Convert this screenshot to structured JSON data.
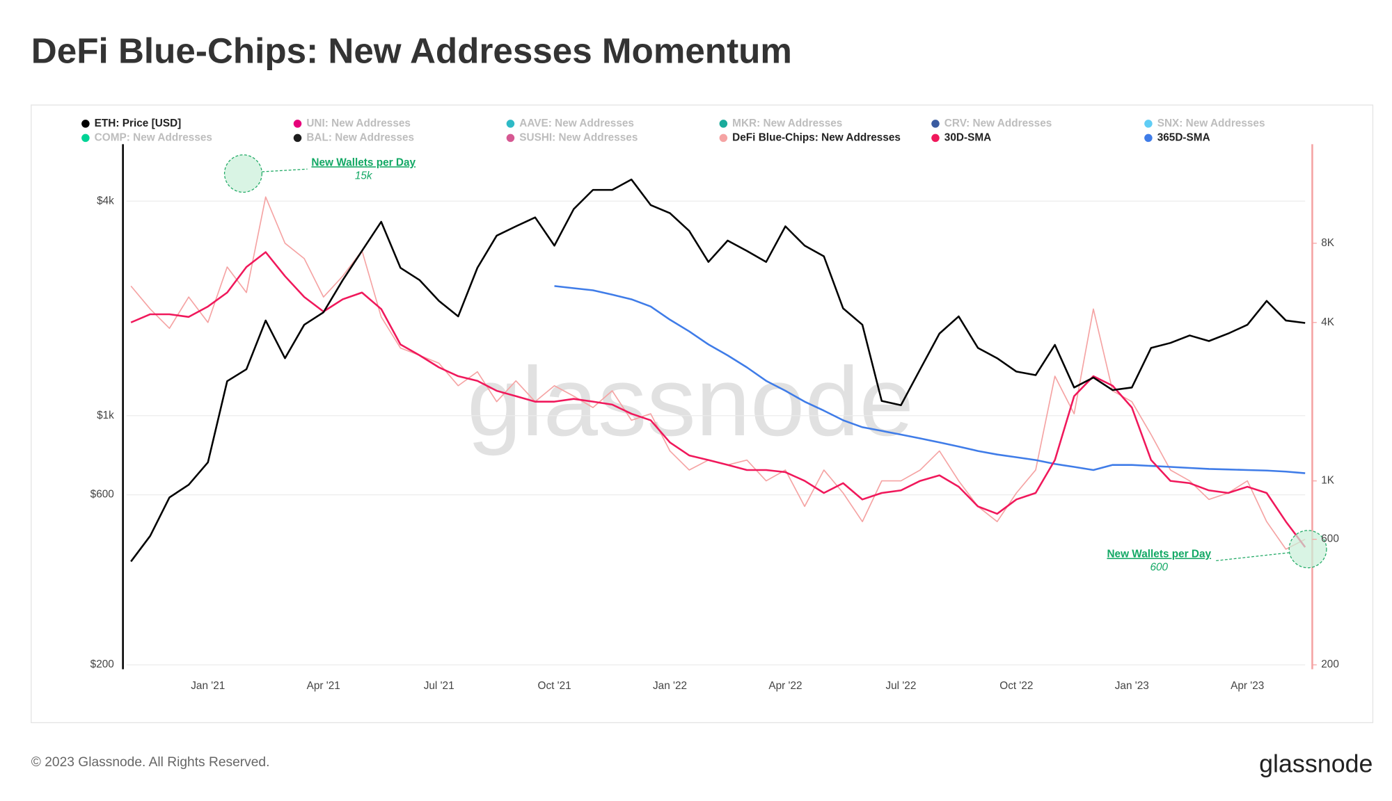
{
  "chart_data": {
    "type": "line",
    "title": "DeFi Blue-Chips: New Addresses Momentum",
    "watermark": "glassnode",
    "footer": "© 2023 Glassnode. All Rights Reserved.",
    "brand": "glassnode",
    "categories": [
      null,
      null,
      null,
      null,
      "Jan '21",
      null,
      null,
      null,
      null,
      null,
      "Apr '21",
      null,
      null,
      null,
      null,
      null,
      "Jul '21",
      null,
      null,
      null,
      null,
      null,
      "Oct '21",
      null,
      null,
      null,
      null,
      null,
      "Jan '22",
      null,
      null,
      null,
      null,
      null,
      "Apr '22",
      null,
      null,
      null,
      null,
      null,
      "Jul '22",
      null,
      null,
      null,
      null,
      null,
      "Oct '22",
      null,
      null,
      null,
      null,
      null,
      "Jan '23",
      null,
      null,
      null,
      null,
      null,
      "Apr '23",
      null,
      null,
      null
    ],
    "ylog": true,
    "ylim": [
      200,
      5680
    ],
    "yticks": [
      {
        "value": 200,
        "label": "$200"
      },
      {
        "value": 600,
        "label": "$600"
      },
      {
        "value": 1000,
        "label": "$1k"
      },
      {
        "value": 4000,
        "label": "$4k"
      }
    ],
    "y2log": true,
    "y2lim": [
      200,
      18600
    ],
    "y2ticks": [
      200,
      600,
      {
        "value": 1000,
        "label": "1K"
      },
      {
        "value": 4000,
        "label": "4K"
      },
      {
        "value": 8000,
        "label": "8K"
      }
    ],
    "grid": true,
    "legend": "top",
    "series": [
      {
        "name": "ETH: Price [USD]",
        "color": "#000000",
        "axis": "y",
        "visible": true,
        "values": [
          390,
          460,
          590,
          640,
          740,
          1250,
          1350,
          1850,
          1450,
          1800,
          1950,
          2400,
          2900,
          3500,
          2600,
          2400,
          2100,
          1900,
          2600,
          3200,
          3400,
          3600,
          3000,
          3800,
          4300,
          4300,
          4600,
          3900,
          3700,
          3300,
          2700,
          3100,
          2900,
          2700,
          3400,
          3000,
          2800,
          2000,
          1800,
          1100,
          1070,
          1350,
          1700,
          1900,
          1550,
          1450,
          1330,
          1300,
          1580,
          1200,
          1280,
          1180,
          1200,
          1550,
          1600,
          1680,
          1620,
          1700,
          1800,
          2100,
          1850,
          1820
        ]
      },
      {
        "name": "UNI: New Addresses",
        "color": "#e6007a",
        "visible": false
      },
      {
        "name": "AAVE: New Addresses",
        "color": "#2ebac6",
        "visible": false
      },
      {
        "name": "MKR: New Addresses",
        "color": "#1aab9b",
        "visible": false
      },
      {
        "name": "CRV: New Addresses",
        "color": "#3a5ba0",
        "visible": false
      },
      {
        "name": "SNX: New Addresses",
        "color": "#5fcdf5",
        "visible": false
      },
      {
        "name": "COMP: New Addresses",
        "color": "#00d395",
        "visible": false
      },
      {
        "name": "BAL: New Addresses",
        "color": "#1e1e1e",
        "visible": false
      },
      {
        "name": "SUSHI: New Addresses",
        "color": "#d65892",
        "visible": false
      },
      {
        "name": "DeFi Blue-Chips: New Addresses",
        "color": "#f5a3a3",
        "axis": "y2",
        "visible": true,
        "values": [
          5500,
          4500,
          3800,
          5000,
          4000,
          6500,
          5200,
          12000,
          8000,
          7000,
          5000,
          6000,
          7500,
          4200,
          3200,
          3000,
          2800,
          2300,
          2600,
          2000,
          2400,
          2000,
          2300,
          2100,
          1900,
          2200,
          1700,
          1800,
          1300,
          1100,
          1200,
          1150,
          1200,
          1000,
          1100,
          800,
          1100,
          900,
          700,
          1000,
          1000,
          1100,
          1300,
          1000,
          800,
          700,
          900,
          1100,
          2500,
          1800,
          4500,
          2200,
          2000,
          1500,
          1100,
          1000,
          850,
          900,
          1000,
          700,
          550,
          600
        ]
      },
      {
        "name": "30D-SMA",
        "color": "#f0185b",
        "axis": "y2",
        "visible": true,
        "values": [
          4000,
          4300,
          4300,
          4200,
          4600,
          5200,
          6500,
          7400,
          6000,
          5000,
          4400,
          4900,
          5200,
          4500,
          3300,
          3000,
          2700,
          2500,
          2400,
          2200,
          2100,
          2000,
          2000,
          2050,
          2000,
          1950,
          1800,
          1700,
          1400,
          1250,
          1200,
          1150,
          1100,
          1100,
          1080,
          1000,
          900,
          980,
          850,
          900,
          920,
          1000,
          1050,
          950,
          800,
          750,
          850,
          900,
          1200,
          2100,
          2500,
          2300,
          1900,
          1200,
          1000,
          980,
          920,
          900,
          950,
          900,
          700,
          560
        ]
      },
      {
        "name": "365D-SMA",
        "color": "#3f7ce8",
        "axis": "y2",
        "visible": true,
        "values": [
          null,
          null,
          null,
          null,
          null,
          null,
          null,
          null,
          null,
          null,
          null,
          null,
          null,
          null,
          null,
          null,
          null,
          null,
          null,
          null,
          null,
          null,
          5500,
          5400,
          5300,
          5100,
          4900,
          4600,
          4100,
          3700,
          3300,
          3000,
          2700,
          2400,
          2200,
          2000,
          1850,
          1700,
          1600,
          1550,
          1500,
          1450,
          1400,
          1350,
          1300,
          1260,
          1230,
          1200,
          1160,
          1130,
          1100,
          1150,
          1150,
          1140,
          1130,
          1120,
          1110,
          1105,
          1100,
          1095,
          1085,
          1070
        ]
      }
    ],
    "annotations": [
      {
        "text": "New Wallets per Day",
        "label": "15k"
      },
      {
        "text": "New Wallets per Day",
        "label": "600"
      }
    ]
  }
}
